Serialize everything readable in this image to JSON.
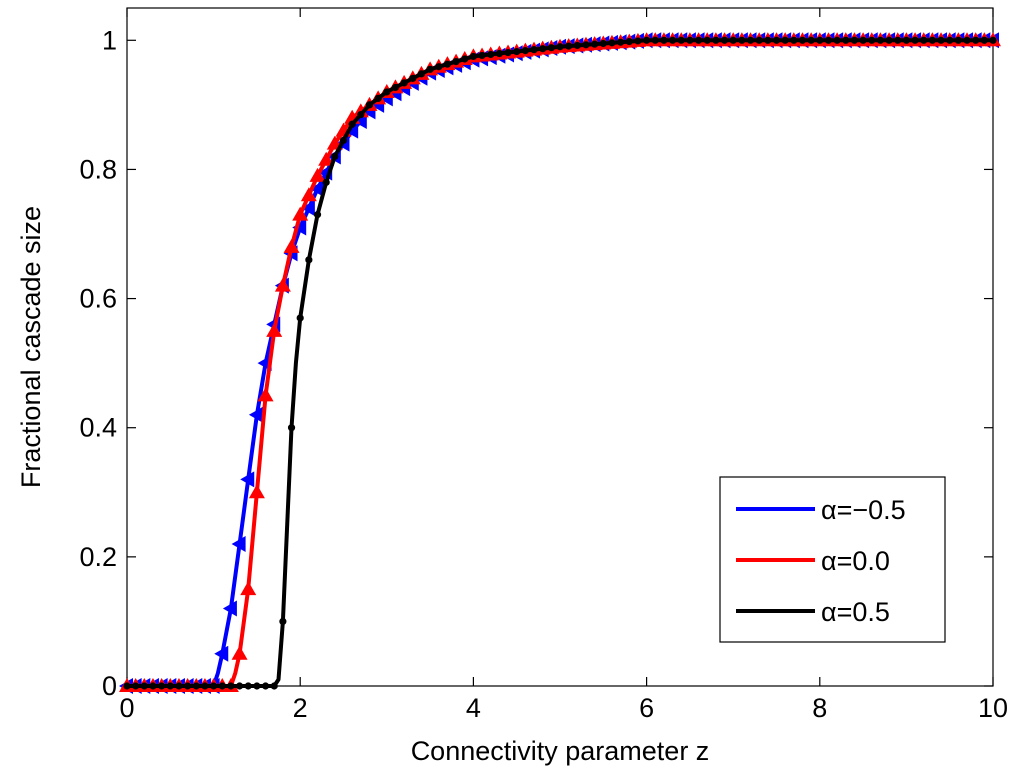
{
  "chart_data": {
    "type": "line",
    "title": "",
    "xlabel": "Connectivity parameter z",
    "ylabel": "Fractional cascade size",
    "xlim": [
      0,
      10
    ],
    "ylim": [
      0,
      1.05
    ],
    "xticks": [
      0,
      2,
      4,
      6,
      8,
      10
    ],
    "yticks": [
      0,
      0.2,
      0.4,
      0.6,
      0.8,
      1
    ],
    "xtick_labels": [
      "0",
      "2",
      "4",
      "6",
      "8",
      "10"
    ],
    "ytick_labels": [
      "0",
      "0.2",
      "0.4",
      "0.6",
      "0.8",
      "1"
    ],
    "grid": false,
    "legend_position": "bottom-right",
    "series": [
      {
        "name": "α=−0.5",
        "color": "#0000ff",
        "marker": "triangle-left",
        "points": [
          [
            0,
            0
          ],
          [
            0.5,
            0
          ],
          [
            1.0,
            0
          ],
          [
            1.05,
            0.02
          ],
          [
            1.1,
            0.05
          ],
          [
            1.2,
            0.12
          ],
          [
            1.3,
            0.22
          ],
          [
            1.4,
            0.32
          ],
          [
            1.5,
            0.42
          ],
          [
            1.6,
            0.5
          ],
          [
            1.7,
            0.56
          ],
          [
            1.8,
            0.62
          ],
          [
            1.9,
            0.67
          ],
          [
            2.0,
            0.71
          ],
          [
            2.2,
            0.77
          ],
          [
            2.4,
            0.82
          ],
          [
            2.6,
            0.86
          ],
          [
            2.8,
            0.89
          ],
          [
            3.0,
            0.91
          ],
          [
            3.5,
            0.95
          ],
          [
            4.0,
            0.97
          ],
          [
            5.0,
            0.99
          ],
          [
            6.0,
            1.0
          ],
          [
            8.0,
            1.0
          ],
          [
            10.0,
            1.0
          ]
        ]
      },
      {
        "name": "α=0.0",
        "color": "#ff0000",
        "marker": "triangle-up",
        "points": [
          [
            0,
            0
          ],
          [
            0.5,
            0
          ],
          [
            1.2,
            0
          ],
          [
            1.25,
            0.02
          ],
          [
            1.3,
            0.05
          ],
          [
            1.4,
            0.15
          ],
          [
            1.5,
            0.3
          ],
          [
            1.6,
            0.45
          ],
          [
            1.7,
            0.55
          ],
          [
            1.8,
            0.62
          ],
          [
            1.9,
            0.68
          ],
          [
            2.0,
            0.73
          ],
          [
            2.2,
            0.79
          ],
          [
            2.4,
            0.84
          ],
          [
            2.6,
            0.88
          ],
          [
            2.8,
            0.9
          ],
          [
            3.0,
            0.92
          ],
          [
            3.5,
            0.955
          ],
          [
            4.0,
            0.975
          ],
          [
            5.0,
            0.99
          ],
          [
            6.0,
            1.0
          ],
          [
            8.0,
            1.0
          ],
          [
            10.0,
            1.0
          ]
        ]
      },
      {
        "name": "α=0.5",
        "color": "#000000",
        "marker": "dot",
        "points": [
          [
            0,
            0
          ],
          [
            1.0,
            0
          ],
          [
            1.7,
            0
          ],
          [
            1.75,
            0.01
          ],
          [
            1.8,
            0.1
          ],
          [
            1.85,
            0.25
          ],
          [
            1.9,
            0.4
          ],
          [
            1.95,
            0.5
          ],
          [
            2.0,
            0.57
          ],
          [
            2.1,
            0.66
          ],
          [
            2.2,
            0.73
          ],
          [
            2.3,
            0.78
          ],
          [
            2.4,
            0.82
          ],
          [
            2.6,
            0.87
          ],
          [
            2.8,
            0.9
          ],
          [
            3.0,
            0.92
          ],
          [
            3.5,
            0.955
          ],
          [
            4.0,
            0.975
          ],
          [
            5.0,
            0.99
          ],
          [
            6.0,
            1.0
          ],
          [
            8.0,
            1.0
          ],
          [
            10.0,
            1.0
          ]
        ]
      }
    ]
  }
}
